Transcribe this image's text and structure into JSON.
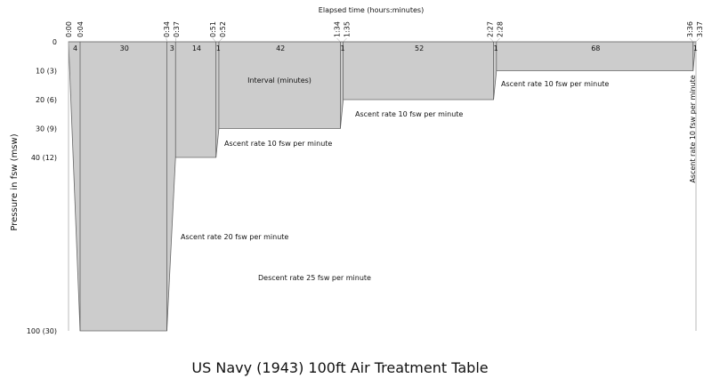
{
  "chart_data": {
    "type": "area",
    "title": "US Navy (1943) 100ft Air Treatment Table",
    "xlabel": "Elapsed time (hours:minutes)",
    "ylabel": "Pressure in fsw (msw)",
    "y_axis_inverted": true,
    "ylim": [
      0,
      100
    ],
    "xlim_minutes": [
      0,
      217
    ],
    "y_ticks": [
      {
        "value": 0,
        "label": "0"
      },
      {
        "value": 10,
        "label": "10 (3)"
      },
      {
        "value": 20,
        "label": "20 (6)"
      },
      {
        "value": 30,
        "label": "30 (9)"
      },
      {
        "value": 40,
        "label": "40 (12)"
      },
      {
        "value": 100,
        "label": "100 (30)"
      }
    ],
    "profile": [
      {
        "time": "0:00",
        "minutes": 0,
        "depth": 0
      },
      {
        "time": "0:04",
        "minutes": 4,
        "depth": 100
      },
      {
        "time": "0:34",
        "minutes": 34,
        "depth": 100
      },
      {
        "time": "0:37",
        "minutes": 37,
        "depth": 40
      },
      {
        "time": "0:51",
        "minutes": 51,
        "depth": 40
      },
      {
        "time": "0:52",
        "minutes": 52,
        "depth": 30
      },
      {
        "time": "1:34",
        "minutes": 94,
        "depth": 30
      },
      {
        "time": "1:35",
        "minutes": 95,
        "depth": 20
      },
      {
        "time": "2:27",
        "minutes": 147,
        "depth": 20
      },
      {
        "time": "2:28",
        "minutes": 148,
        "depth": 10
      },
      {
        "time": "3:36",
        "minutes": 216,
        "depth": 10
      },
      {
        "time": "3:37",
        "minutes": 217,
        "depth": 0
      }
    ],
    "intervals": [
      "4",
      "30",
      "3",
      "14",
      "1",
      "42",
      "1",
      "52",
      "1",
      "68",
      "1"
    ],
    "annotations": {
      "interval": "Interval (minutes)",
      "ascent_10_a": "Ascent rate 10 fsw per minute",
      "ascent_10_b": "Ascent rate 10 fsw per minute",
      "ascent_10_c": "Ascent rate 10 fsw per minute",
      "ascent_10_d": "Ascent rate 10 fsw per minute",
      "ascent_20": "Ascent rate 20 fsw per minute",
      "descent_25": "Descent rate 25 fsw per minute"
    },
    "colors": {
      "fill": "#cccccc",
      "stroke": "#666666"
    }
  }
}
